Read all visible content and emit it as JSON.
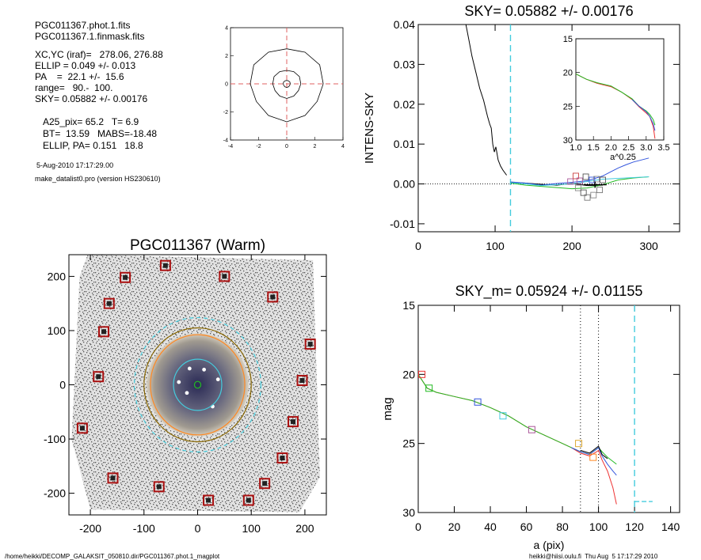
{
  "info": {
    "lines": [
      "PGC011367.phot.1.fits",
      "PGC011367.1.finmask.fits",
      "XC,YC (iraf)=   278.06, 276.88",
      "ELLIP = 0.049 +/- 0.013",
      "PA    =  22.1 +/-  15.6",
      "range=   90.-  100.",
      "SKY= 0.05882 +/- 0.00176",
      "A25_pix= 65.2   T= 6.9",
      "BT=  13.59   MABS=-18.48",
      "ELLIP, PA= 0.151   18.8"
    ],
    "timestamp": "5-Aug-2010 17:17:29.00",
    "program": "make_datalist0.pro (version HS230610)"
  },
  "footer": {
    "left": "/home/heikki/DECOMP_GALAKSIT_050810.dir/PGC011367.phot.1_magplot",
    "right": "heikki@hiisi.oulu.fi  Thu Aug  5 17:17:29 2010"
  },
  "chart_data": [
    {
      "id": "contour",
      "type": "contour",
      "title": "",
      "xlim": [
        -4,
        4
      ],
      "ylim": [
        -4,
        4
      ],
      "xticks": [
        -4,
        -2,
        0,
        2,
        4
      ],
      "yticks": [
        -4,
        -2,
        0,
        2,
        4
      ],
      "contour_radii": [
        0.25,
        1.0,
        2.6
      ],
      "center": [
        0,
        0
      ],
      "crosshair_color": "#e06060"
    },
    {
      "id": "sky",
      "type": "line",
      "title": "SKY= 0.05882 +/- 0.00176",
      "xlabel": "",
      "ylabel": "INTENS-SKY",
      "xlim": [
        0,
        340
      ],
      "ylim": [
        -0.012,
        0.04
      ],
      "xticks": [
        0,
        100,
        200,
        300
      ],
      "yticks": [
        0.04,
        0.03,
        0.02,
        0.01,
        0.0,
        -0.01
      ],
      "ytick_labels": [
        "0.04",
        "0.03",
        "0.02",
        "0.01",
        "0.00",
        "-0.01"
      ],
      "xtick_labels": [
        "0",
        "100",
        "200",
        "300"
      ],
      "vline": 120,
      "vline_color": "#44ccdd",
      "series": [
        {
          "color": "#000000",
          "x": [
            62,
            66,
            70,
            75,
            80,
            85,
            90,
            93,
            95,
            97,
            99,
            101,
            104,
            107,
            110,
            115
          ],
          "y": [
            0.04,
            0.036,
            0.032,
            0.028,
            0.024,
            0.021,
            0.017,
            0.015,
            0.014,
            0.01,
            0.008,
            0.0093,
            0.006,
            0.0045,
            0.0035,
            0.0022
          ]
        },
        {
          "color": "#000000",
          "x": [
            120,
            140,
            160,
            180,
            200,
            220,
            240
          ],
          "y": [
            0.0004,
            0.0002,
            -0.0001,
            -0.0003,
            0.0001,
            -0.0004,
            -0.0003
          ]
        },
        {
          "color": "#3355dd",
          "x": [
            120,
            140,
            160,
            180,
            200,
            220,
            240,
            250,
            260,
            270,
            280,
            290,
            300
          ],
          "y": [
            0.0005,
            0.0002,
            -0.0003,
            0.0001,
            0.0004,
            0.0008,
            0.002,
            0.003,
            0.004,
            0.0048,
            0.0055,
            0.006,
            0.0065
          ]
        },
        {
          "color": "#22bb22",
          "x": [
            120,
            140,
            160,
            180,
            200,
            220,
            240,
            260,
            280,
            300
          ],
          "y": [
            0.0002,
            -0.0003,
            -0.0006,
            -0.0009,
            -0.0012,
            -0.001,
            -0.0002,
            0.001,
            0.0015,
            0.0018
          ]
        },
        {
          "color": "#44ccdd",
          "x": [
            120,
            140,
            160,
            180,
            200,
            220,
            240,
            260,
            280,
            300
          ],
          "y": [
            0.0003,
            0.0,
            -0.0004,
            -0.0002,
            0.0,
            0.0006,
            0.0012,
            0.0014,
            0.0016,
            0.0018
          ]
        }
      ],
      "squares": [
        {
          "x": 198,
          "y": 0.0006,
          "color": "#aa5599"
        },
        {
          "x": 205,
          "y": 0.002,
          "color": "#cc4444"
        },
        {
          "x": 210,
          "y": 0.0008,
          "color": "#aa5599"
        },
        {
          "x": 218,
          "y": 0.0018,
          "color": "#555555"
        },
        {
          "x": 226,
          "y": 0.001,
          "color": "#3355dd"
        },
        {
          "x": 232,
          "y": 0.0012,
          "color": "#888888"
        },
        {
          "x": 240,
          "y": 0.001,
          "color": "#555555"
        },
        {
          "x": 208,
          "y": -0.001,
          "color": "#888888"
        },
        {
          "x": 215,
          "y": -0.0022,
          "color": "#555555"
        },
        {
          "x": 220,
          "y": -0.0034,
          "color": "#777777"
        },
        {
          "x": 228,
          "y": -0.0028,
          "color": "#888888"
        },
        {
          "x": 236,
          "y": -0.0015,
          "color": "#777777"
        }
      ],
      "errbar": {
        "x": 230,
        "y": -0.0002,
        "xerr": 15
      },
      "inset": {
        "xlabel": "a^0.25",
        "xlim": [
          1.0,
          3.5
        ],
        "ylim": [
          15,
          30
        ],
        "xticks": [
          1.0,
          1.5,
          2.0,
          2.5,
          3.0,
          3.5
        ],
        "xtick_labels": [
          "1.0",
          "1.5",
          "2.0",
          "2.5",
          "3.0",
          "3.5"
        ],
        "yticks": [
          15,
          20,
          25,
          30
        ],
        "ytick_labels": [
          "15",
          "20",
          "25",
          "30"
        ],
        "series": [
          {
            "color": "#ee3333",
            "x": [
              1.0,
              1.3,
              1.6,
              2.0,
              2.3,
              2.6,
              2.8,
              3.0,
              3.1,
              3.2,
              3.25
            ],
            "y": [
              20.2,
              21.0,
              21.6,
              22.1,
              22.9,
              24.0,
              25.1,
              26.0,
              26.5,
              28.0,
              29.8
            ]
          },
          {
            "color": "#22bb22",
            "x": [
              1.0,
              1.3,
              1.6,
              2.0,
              2.3,
              2.6,
              2.8,
              3.0,
              3.1,
              3.2,
              3.25
            ],
            "y": [
              20.2,
              21.0,
              21.5,
              22.0,
              22.9,
              23.9,
              25.0,
              25.7,
              26.2,
              27.0,
              27.8
            ]
          },
          {
            "color": "#3355dd",
            "x": [
              2.6,
              2.8,
              3.0,
              3.1,
              3.2,
              3.25
            ],
            "y": [
              24.0,
              25.0,
              25.8,
              26.5,
              27.6,
              28.6
            ]
          }
        ]
      }
    },
    {
      "id": "image",
      "type": "image",
      "title": "PGC011367 (Warm)",
      "xlim": [
        -240,
        240
      ],
      "ylim": [
        -240,
        240
      ],
      "xticks": [
        -200,
        -100,
        0,
        100,
        200
      ],
      "yticks": [
        200,
        100,
        0,
        -100,
        -200
      ],
      "xtick_labels": [
        "-200",
        "-100",
        "0",
        "100",
        "200"
      ],
      "ytick_labels": [
        "200",
        "100",
        "0",
        "-100",
        "-200"
      ],
      "ellipses": [
        {
          "r": 100,
          "color": "#886600"
        },
        {
          "r": 118,
          "color": "#44ccdd",
          "dashed": true
        },
        {
          "r": 88,
          "color": "#ff8822"
        },
        {
          "r": 45,
          "color": "#44ccdd"
        },
        {
          "r": 6,
          "color": "#22bb22"
        }
      ],
      "boxes": [
        [
          -135,
          198
        ],
        [
          -60,
          220
        ],
        [
          50,
          200
        ],
        [
          140,
          162
        ],
        [
          -165,
          150
        ],
        [
          -175,
          98
        ],
        [
          -185,
          15
        ],
        [
          -215,
          -80
        ],
        [
          -158,
          -172
        ],
        [
          -72,
          -188
        ],
        [
          20,
          -213
        ],
        [
          95,
          -213
        ],
        [
          125,
          -182
        ],
        [
          158,
          -135
        ],
        [
          178,
          -68
        ],
        [
          195,
          8
        ],
        [
          210,
          75
        ],
        [
          -10,
          255
        ]
      ],
      "box_color": "#aa1111"
    },
    {
      "id": "mag",
      "type": "line",
      "title": "SKY_m=  0.05924 +/- 0.01155",
      "xlabel": "a (pix)",
      "ylabel": "mag",
      "xlim": [
        0,
        145
      ],
      "ylim": [
        30,
        15
      ],
      "xticks": [
        0,
        20,
        40,
        60,
        80,
        100,
        120,
        140
      ],
      "xtick_labels": [
        "0",
        "20",
        "40",
        "60",
        "80",
        "100",
        "120",
        "140"
      ],
      "yticks": [
        15,
        20,
        25,
        30
      ],
      "ytick_labels": [
        "15",
        "20",
        "25",
        "30"
      ],
      "vlines_dotted": [
        90,
        100
      ],
      "vline_dashed": 120,
      "vline_color": "#44ccdd",
      "sky_segment": {
        "x": [
          120,
          130
        ],
        "y": 29.2,
        "color": "#44ccdd"
      },
      "series": [
        {
          "color": "#ee3333",
          "x": [
            0,
            5,
            10,
            20,
            30,
            40,
            50,
            60,
            70,
            80,
            85,
            90,
            95,
            99,
            100,
            102,
            105,
            108,
            110
          ],
          "y": [
            20.0,
            21.0,
            21.3,
            21.6,
            21.9,
            22.4,
            23.0,
            23.8,
            24.4,
            25.0,
            25.3,
            25.7,
            25.9,
            25.6,
            25.5,
            26.2,
            27.0,
            28.2,
            29.4
          ]
        },
        {
          "color": "#22bb22",
          "x": [
            0,
            5,
            10,
            20,
            30,
            40,
            50,
            60,
            70,
            80,
            85,
            90,
            95,
            99,
            100,
            102,
            105,
            108,
            110
          ],
          "y": [
            20.0,
            21.0,
            21.3,
            21.6,
            21.9,
            22.4,
            23.0,
            23.8,
            24.4,
            25.0,
            25.3,
            25.6,
            25.8,
            25.4,
            25.3,
            25.6,
            26.0,
            26.3,
            26.5
          ]
        },
        {
          "color": "#3355dd",
          "x": [
            85,
            90,
            95,
            99,
            100,
            102,
            105,
            108,
            110
          ],
          "y": [
            25.3,
            25.6,
            25.8,
            25.4,
            25.3,
            25.9,
            26.5,
            27.0,
            27.3
          ]
        },
        {
          "color": "#000000",
          "x": [
            90,
            95,
            99,
            100,
            102,
            105
          ],
          "y": [
            25.5,
            25.7,
            25.3,
            25.2,
            25.8,
            26.1
          ]
        }
      ],
      "squares": [
        {
          "x": 2,
          "y": 20.0,
          "color": "#ee3333"
        },
        {
          "x": 6,
          "y": 21.0,
          "color": "#22bb22"
        },
        {
          "x": 33,
          "y": 22.0,
          "color": "#3355dd"
        },
        {
          "x": 47,
          "y": 23.0,
          "color": "#44ccdd"
        },
        {
          "x": 63,
          "y": 24.0,
          "color": "#aa5599"
        },
        {
          "x": 89,
          "y": 25.0,
          "color": "#ddaa33"
        },
        {
          "x": 97,
          "y": 26.0,
          "color": "#ff8822"
        }
      ]
    }
  ]
}
